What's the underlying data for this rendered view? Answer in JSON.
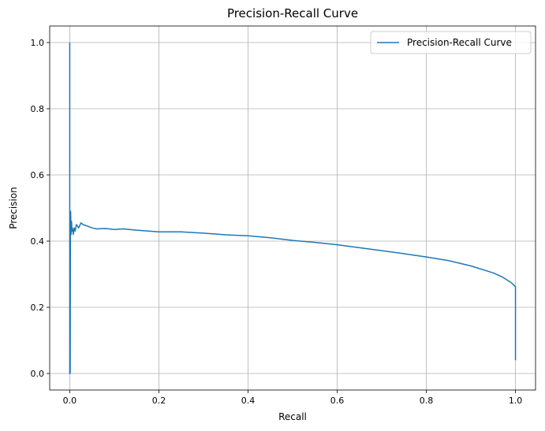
{
  "chart_data": {
    "type": "line",
    "title": "Precision-Recall Curve",
    "xlabel": "Recall",
    "ylabel": "Precision",
    "xlim": [
      -0.045,
      1.045
    ],
    "ylim": [
      -0.05,
      1.05
    ],
    "xticks": [
      0.0,
      0.2,
      0.4,
      0.6,
      0.8,
      1.0
    ],
    "yticks": [
      0.0,
      0.2,
      0.4,
      0.6,
      0.8,
      1.0
    ],
    "grid": true,
    "legend_position": "top-right",
    "series": [
      {
        "name": "Precision-Recall Curve",
        "color": "#1f77b4",
        "x": [
          0.0,
          0.0,
          0.0005,
          0.001,
          0.0015,
          0.002,
          0.003,
          0.004,
          0.005,
          0.006,
          0.008,
          0.01,
          0.012,
          0.015,
          0.02,
          0.025,
          0.03,
          0.04,
          0.05,
          0.06,
          0.08,
          0.1,
          0.12,
          0.15,
          0.2,
          0.25,
          0.3,
          0.35,
          0.4,
          0.45,
          0.5,
          0.55,
          0.6,
          0.65,
          0.7,
          0.75,
          0.8,
          0.85,
          0.9,
          0.95,
          0.97,
          0.99,
          1.0,
          1.0
        ],
        "y": [
          1.0,
          0.0,
          0.42,
          0.0,
          0.44,
          0.49,
          0.42,
          0.46,
          0.43,
          0.44,
          0.42,
          0.44,
          0.43,
          0.45,
          0.44,
          0.455,
          0.45,
          0.445,
          0.44,
          0.437,
          0.438,
          0.435,
          0.437,
          0.433,
          0.428,
          0.428,
          0.424,
          0.419,
          0.416,
          0.41,
          0.402,
          0.396,
          0.389,
          0.38,
          0.371,
          0.362,
          0.352,
          0.341,
          0.325,
          0.304,
          0.292,
          0.275,
          0.262,
          0.04
        ]
      }
    ]
  }
}
